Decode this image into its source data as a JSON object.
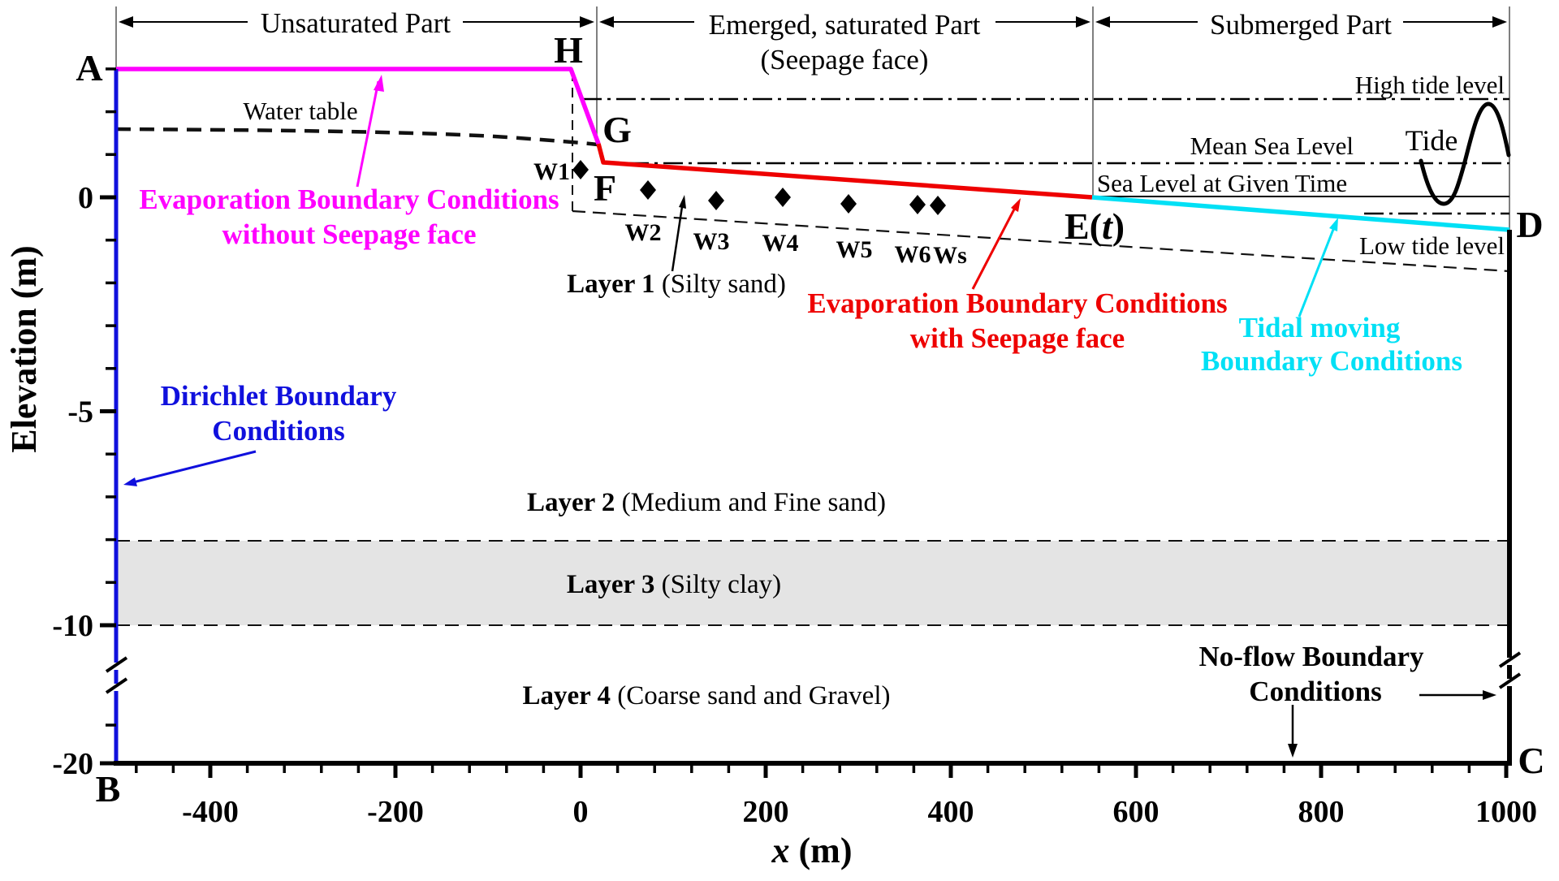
{
  "axes": {
    "x": {
      "label_x": "x",
      "label_unit": " (m)",
      "major_ticks": [
        -400,
        -200,
        0,
        200,
        400,
        600,
        800,
        1000
      ],
      "minor_step_m": 40,
      "min_m": -480,
      "max_m": 1000
    },
    "y": {
      "label": "Elevation (m)",
      "major_ticks": [
        0,
        -5,
        -10,
        -20
      ],
      "minor_ticks": [
        3,
        2,
        1,
        -1,
        -2,
        -3,
        -4,
        -6,
        -7,
        -8,
        -9
      ]
    }
  },
  "regions": {
    "unsaturated": "Unsaturated Part",
    "emerged_line1": "Emerged, saturated Part",
    "emerged_line2": "(Seepage face)",
    "submerged": "Submerged Part"
  },
  "corners": {
    "A": "A",
    "B": "B",
    "C": "C",
    "D": "D",
    "E_prefix": "E(",
    "E_t": "t",
    "E_suffix": ")",
    "F": "F",
    "G": "G",
    "H": "H"
  },
  "wells": [
    {
      "label": "W1"
    },
    {
      "label": "W2"
    },
    {
      "label": "W3"
    },
    {
      "label": "W4"
    },
    {
      "label": "W5"
    },
    {
      "label": "W6"
    },
    {
      "label": "Ws"
    }
  ],
  "layers": [
    {
      "name": "Layer 1",
      "material": " (Silty sand)"
    },
    {
      "name": "Layer 2",
      "material": " (Medium and Fine sand)"
    },
    {
      "name": "Layer 3",
      "material": " (Silty clay)"
    },
    {
      "name": "Layer 4",
      "material": " (Coarse sand and Gravel)"
    }
  ],
  "sea": {
    "high": "High tide level",
    "mean": "Mean Sea Level",
    "given": "Sea Level at Given Time",
    "low": "Low tide level",
    "tide": "Tide"
  },
  "hydro": {
    "water_table": "Water table"
  },
  "boundaries": {
    "evap_no_seep_line1": "Evaporation Boundary Conditions",
    "evap_no_seep_line2": "without Seepage face",
    "evap_seep_line1": "Evaporation Boundary Conditions",
    "evap_seep_line2": "with Seepage face",
    "tidal_line1": "Tidal moving",
    "tidal_line2": "Boundary Conditions",
    "dirichlet_line1": "Dirichlet Boundary",
    "dirichlet_line2": "Conditions",
    "noflow_line1": "No-flow Boundary",
    "noflow_line2": "Conditions"
  },
  "colors": {
    "magenta": "#ff00ff",
    "red": "#ee0000",
    "cyan": "#00e0f5",
    "blue": "#1010dd",
    "gray_layer": "#e4e4e4",
    "black": "#000000"
  }
}
